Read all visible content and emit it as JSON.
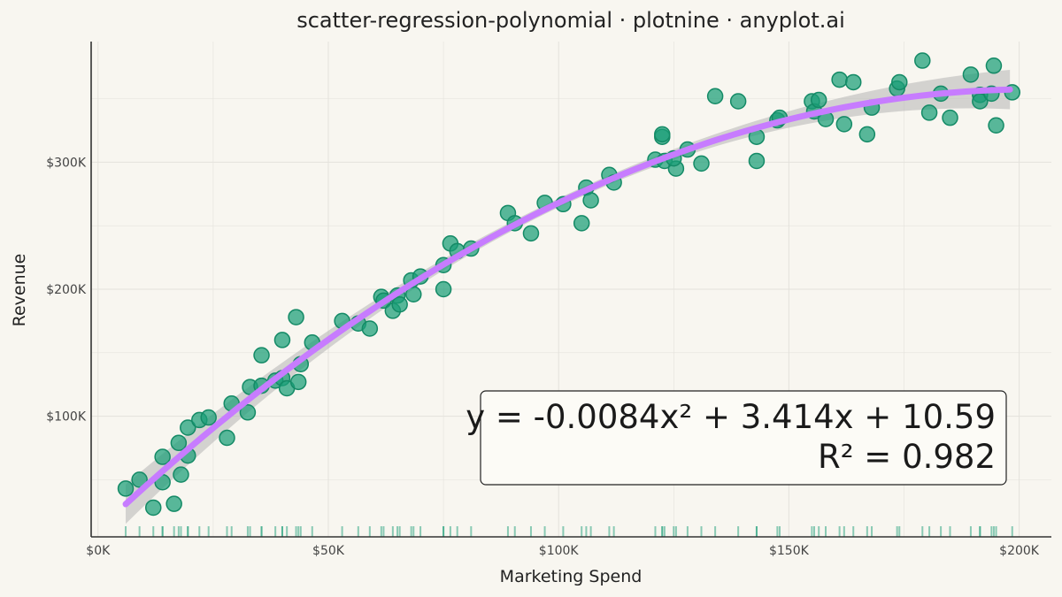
{
  "chart_data": {
    "type": "scatter",
    "title": "scatter-regression-polynomial · plotnine · anyplot.ai",
    "xlabel": "Marketing Spend",
    "ylabel": "Revenue",
    "xlim": [
      -1500,
      207000
    ],
    "ylim": [
      5000,
      395000
    ],
    "x_ticks": [
      0,
      50000,
      100000,
      150000,
      200000
    ],
    "x_tick_labels": [
      "$0K",
      "$50K",
      "$100K",
      "$150K",
      "$200K"
    ],
    "y_ticks": [
      100000,
      200000,
      300000
    ],
    "y_tick_labels": [
      "$100K",
      "$200K",
      "$300K"
    ],
    "grid": true,
    "colors": {
      "points": "#1b9e77",
      "fit_line": "#c77cff",
      "band": "#b5b5b5",
      "rug": "#1b9e77",
      "background": "#f8f6f0"
    },
    "annotation": {
      "line1": "y = -0.0084x² + 3.414x + 10.59",
      "line2": "R² = 0.982",
      "position": "bottom-right"
    },
    "fit": {
      "a": -0.0084,
      "b": 3.414,
      "c": 10.59,
      "x_range": [
        6000,
        198000
      ],
      "units": "thousands"
    },
    "points": [
      [
        6000,
        43000
      ],
      [
        9000,
        50000
      ],
      [
        12000,
        28000
      ],
      [
        14000,
        68000
      ],
      [
        14000,
        48000
      ],
      [
        16500,
        31000
      ],
      [
        17500,
        79000
      ],
      [
        18000,
        54000
      ],
      [
        19500,
        91000
      ],
      [
        19500,
        69000
      ],
      [
        22000,
        97000
      ],
      [
        24000,
        99000
      ],
      [
        28000,
        83000
      ],
      [
        29000,
        110000
      ],
      [
        32500,
        103000
      ],
      [
        33000,
        123000
      ],
      [
        35500,
        124000
      ],
      [
        35500,
        148000
      ],
      [
        38500,
        128000
      ],
      [
        40000,
        130000
      ],
      [
        40000,
        160000
      ],
      [
        41000,
        122000
      ],
      [
        43000,
        178000
      ],
      [
        43500,
        127000
      ],
      [
        44000,
        141000
      ],
      [
        46500,
        158000
      ],
      [
        53000,
        175000
      ],
      [
        56500,
        173000
      ],
      [
        59000,
        169000
      ],
      [
        61500,
        194000
      ],
      [
        62000,
        191000
      ],
      [
        64000,
        183000
      ],
      [
        65000,
        195000
      ],
      [
        65500,
        188000
      ],
      [
        68000,
        207000
      ],
      [
        68500,
        196000
      ],
      [
        70000,
        210000
      ],
      [
        75000,
        219000
      ],
      [
        75000,
        200000
      ],
      [
        76500,
        236000
      ],
      [
        78000,
        230000
      ],
      [
        81000,
        232000
      ],
      [
        89000,
        260000
      ],
      [
        90500,
        252000
      ],
      [
        94000,
        244000
      ],
      [
        97000,
        268000
      ],
      [
        101000,
        267000
      ],
      [
        105000,
        252000
      ],
      [
        106000,
        280000
      ],
      [
        107000,
        270000
      ],
      [
        111000,
        290000
      ],
      [
        112000,
        284000
      ],
      [
        121000,
        302000
      ],
      [
        122500,
        320000
      ],
      [
        122500,
        322000
      ],
      [
        123000,
        301000
      ],
      [
        125500,
        295000
      ],
      [
        125000,
        303000
      ],
      [
        128000,
        310000
      ],
      [
        131000,
        299000
      ],
      [
        134000,
        352000
      ],
      [
        139000,
        348000
      ],
      [
        143000,
        320000
      ],
      [
        143000,
        301000
      ],
      [
        147500,
        333000
      ],
      [
        148000,
        335000
      ],
      [
        155000,
        348000
      ],
      [
        155500,
        340000
      ],
      [
        156500,
        349000
      ],
      [
        158000,
        334000
      ],
      [
        161000,
        365000
      ],
      [
        162000,
        330000
      ],
      [
        164000,
        363000
      ],
      [
        167000,
        322000
      ],
      [
        168000,
        343000
      ],
      [
        173500,
        358000
      ],
      [
        174000,
        363000
      ],
      [
        179000,
        380000
      ],
      [
        180500,
        339000
      ],
      [
        183000,
        354000
      ],
      [
        185000,
        335000
      ],
      [
        189500,
        369000
      ],
      [
        191500,
        353000
      ],
      [
        191500,
        348000
      ],
      [
        194000,
        354000
      ],
      [
        194500,
        376000
      ],
      [
        195000,
        329000
      ],
      [
        198500,
        355000
      ]
    ]
  }
}
